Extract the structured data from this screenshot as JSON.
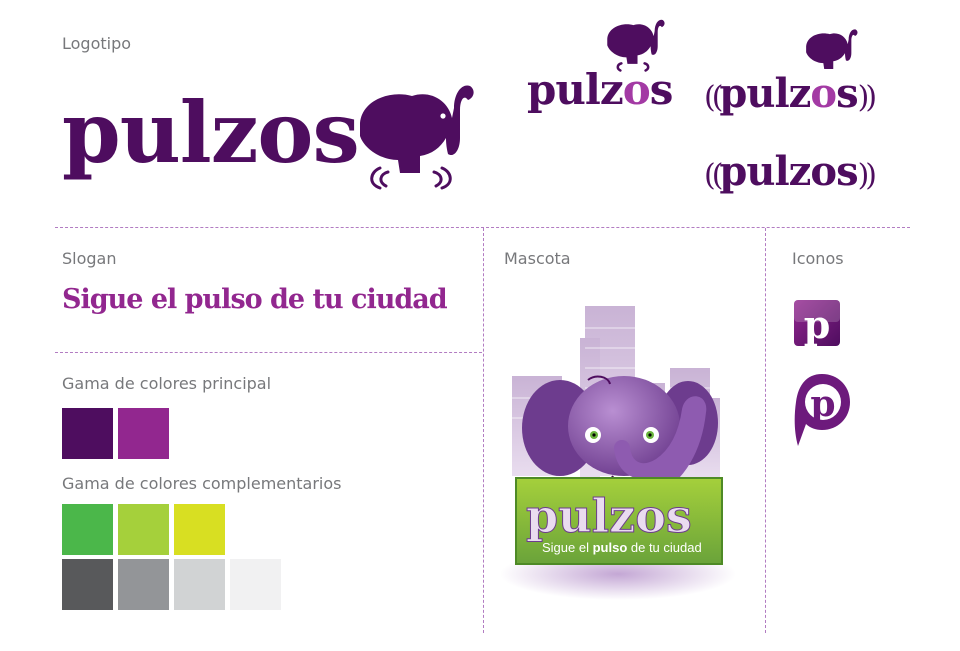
{
  "labels": {
    "logotipo": "Logotipo",
    "slogan": "Slogan",
    "mascota": "Mascota",
    "iconos": "Iconos",
    "gama_principal": "Gama de colores principal",
    "gama_complementarios": "Gama de colores complementarios"
  },
  "brand": {
    "name": "pulzos",
    "name_part1": "pulz",
    "name_o": "o",
    "name_part2": "s",
    "slogan": "Sigue el pulso de tu ciudad",
    "mascot_slogan_start": "Sigue el ",
    "mascot_slogan_bold": "pulso",
    "mascot_slogan_end": " de tu ciudad",
    "icon_letter": "p",
    "paren_left": "((",
    "paren_right": "))"
  },
  "colors": {
    "principal": [
      "#4e0d5f",
      "#92278f"
    ],
    "complementarios_row1": [
      "#4bb74a",
      "#a5d03b",
      "#d8df22"
    ],
    "complementarios_row2": [
      "#58595b",
      "#939598",
      "#d1d3d4",
      "#f1f1f2"
    ],
    "divider": "#b27cc2"
  },
  "icons": [
    "elephant-icon",
    "app-icon-square",
    "app-icon-pin"
  ]
}
